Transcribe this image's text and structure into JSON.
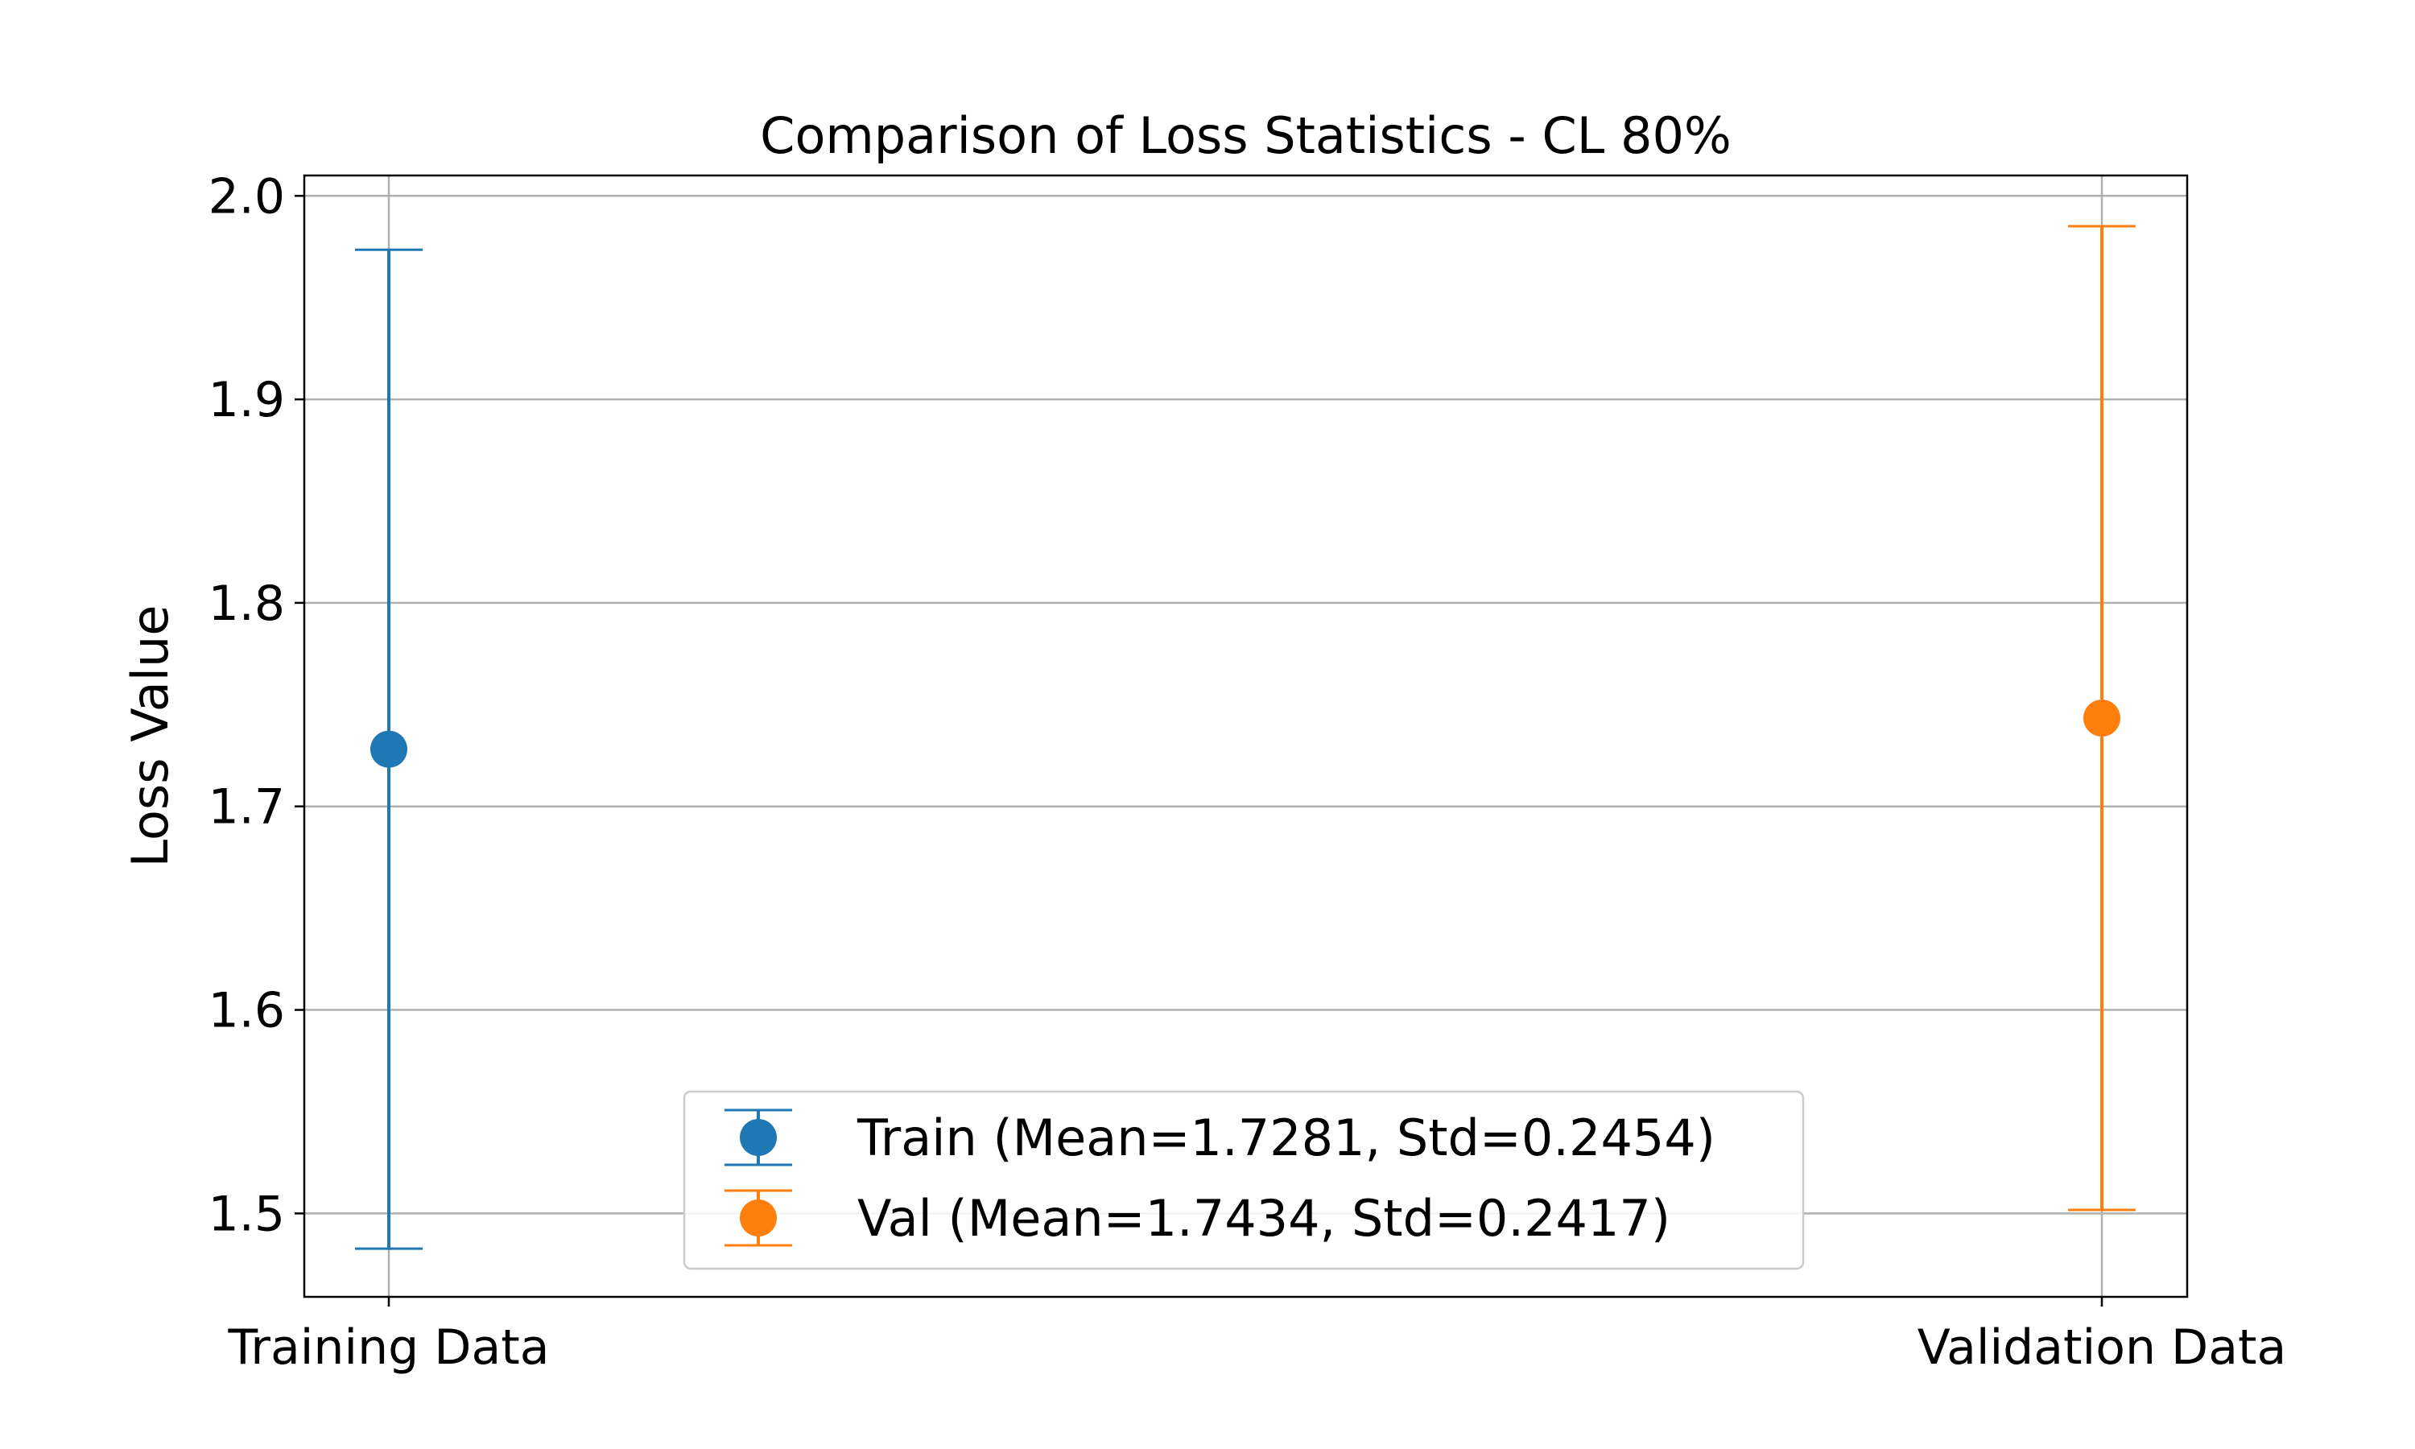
{
  "chart_data": {
    "type": "scatter",
    "title": "Comparison of Loss Statistics - CL 80%",
    "xlabel": "",
    "ylabel": "Loss Value",
    "categories": [
      "Training Data",
      "Validation Data"
    ],
    "ylim": [
      1.459,
      2.01
    ],
    "yticks": [
      "1.5",
      "1.6",
      "1.7",
      "1.8",
      "1.9",
      "2.0"
    ],
    "grid": true,
    "legend_position": "lower-center",
    "series": [
      {
        "name": "Train (Mean=1.7281, Std=0.2454)",
        "category": "Training Data",
        "mean": 1.7281,
        "std": 0.2454,
        "color": "#1f77b4"
      },
      {
        "name": "Val (Mean=1.7434, Std=0.2417)",
        "category": "Validation Data",
        "mean": 1.7434,
        "std": 0.2417,
        "color": "#ff7f0e"
      }
    ]
  }
}
